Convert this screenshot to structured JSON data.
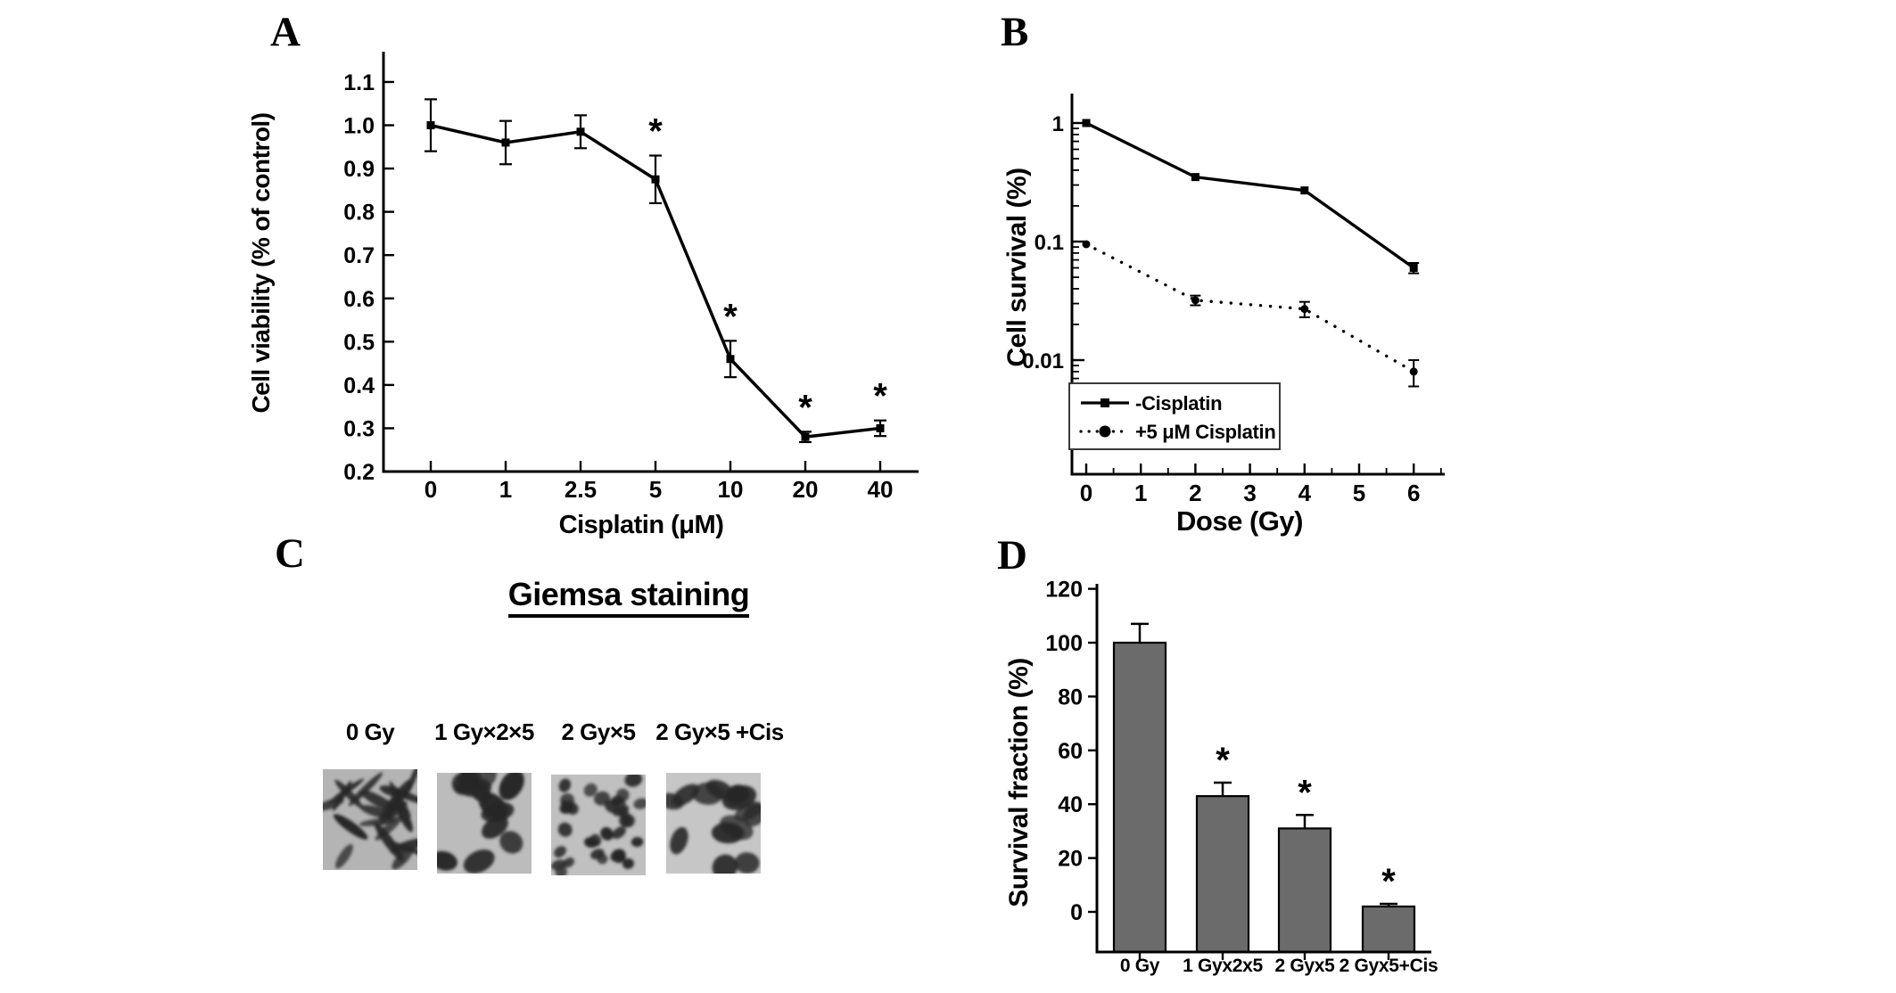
{
  "colors": {
    "ink": "#000000",
    "bar_fill": "#6b6b6b",
    "legend_border": "#3a3a3a",
    "micro_cell": "#262626"
  },
  "panels": {
    "a": {
      "letter": "A"
    },
    "b": {
      "letter": "B"
    },
    "c": {
      "letter": "C",
      "title": "Giemsa staining",
      "micrographs": [
        {
          "label": "0 Gy",
          "pattern": "spindle-cells"
        },
        {
          "label": "1 Gy×2×5",
          "pattern": "large-oval-cells"
        },
        {
          "label": "2 Gy×5",
          "pattern": "small-round-cells"
        },
        {
          "label": "2 Gy×5 +Cis",
          "pattern": "mixed-oval-cells"
        }
      ]
    },
    "d": {
      "letter": "D"
    }
  },
  "chart_data": [
    {
      "panel": "A",
      "type": "line",
      "title": "",
      "xlabel": "Cisplatin (μM)",
      "ylabel": "Cell viability (% of control)",
      "categories": [
        "0",
        "1",
        "2.5",
        "5",
        "10",
        "20",
        "40"
      ],
      "values": [
        1.0,
        0.96,
        0.985,
        0.875,
        0.46,
        0.28,
        0.3
      ],
      "errors": [
        0.06,
        0.05,
        0.038,
        0.055,
        0.042,
        0.012,
        0.018
      ],
      "significant": [
        false,
        false,
        false,
        true,
        true,
        true,
        true
      ],
      "marker": "square",
      "line_style": "solid",
      "ylim": [
        0.2,
        1.15
      ],
      "yticks": [
        "0.2",
        "0.3",
        "0.4",
        "0.5",
        "0.6",
        "0.7",
        "0.8",
        "0.9",
        "1.0",
        "1.1"
      ],
      "grid": false
    },
    {
      "panel": "B",
      "type": "line",
      "y_scale": "log",
      "title": "",
      "xlabel": "Dose (Gy)",
      "ylabel": "Cell survival (%)",
      "x": [
        0,
        2,
        4,
        6
      ],
      "xticks": [
        "0",
        "1",
        "2",
        "3",
        "4",
        "5",
        "6"
      ],
      "yticks": [
        "1",
        "0.1",
        "0.01"
      ],
      "xlim": [
        -0.3,
        6.6
      ],
      "ylim": [
        0.0011,
        1.35
      ],
      "series": [
        {
          "name": "-Cisplatin",
          "line_style": "solid",
          "marker": "square",
          "values": [
            1.0,
            0.35,
            0.27,
            0.06
          ],
          "errors": [
            0,
            0,
            0,
            0.006
          ]
        },
        {
          "name": "+5 μM Cisplatin",
          "line_style": "dotted",
          "marker": "circle",
          "values": [
            0.095,
            0.032,
            0.027,
            0.008
          ],
          "errors": [
            0,
            0.003,
            0.004,
            0.002
          ]
        }
      ],
      "legend_position": "bottom-left",
      "grid": false
    },
    {
      "panel": "D",
      "type": "bar",
      "title": "",
      "xlabel": "",
      "ylabel": "Survival fraction (%)",
      "categories": [
        "0 Gy",
        "1 Gyx2x5",
        "2 Gyx5",
        "2 Gyx5+Cis"
      ],
      "values": [
        100,
        43,
        31,
        2
      ],
      "errors": [
        7,
        5,
        5,
        1
      ],
      "significant": [
        false,
        true,
        true,
        true
      ],
      "ylim": [
        -15,
        122
      ],
      "yticks": [
        "0",
        "20",
        "40",
        "60",
        "80",
        "100",
        "120"
      ],
      "grid": false
    }
  ]
}
